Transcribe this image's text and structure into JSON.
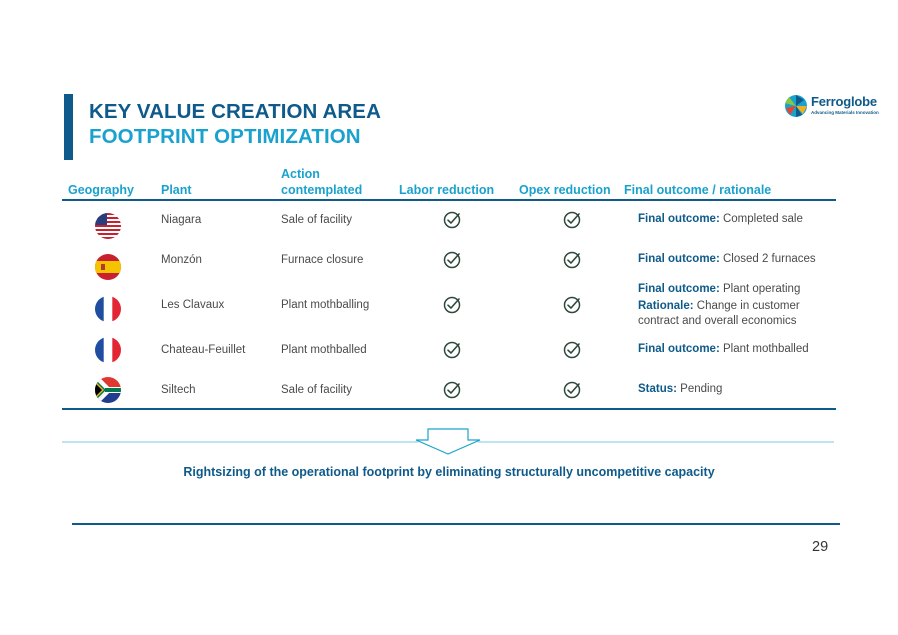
{
  "title": {
    "line1": "KEY VALUE CREATION AREA",
    "line2": "FOOTPRINT OPTIMIZATION"
  },
  "logo": {
    "name": "Ferroglobe",
    "tagline": "Advancing Materials Innovation"
  },
  "table": {
    "headers": {
      "geography": "Geography",
      "plant": "Plant",
      "action_line1": "Action",
      "action_line2": "contemplated",
      "labor": "Labor reduction",
      "opex": "Opex reduction",
      "outcome": "Final outcome / rationale"
    },
    "rows": [
      {
        "country": "United States",
        "plant": "Niagara",
        "action": "Sale of facility",
        "labor": true,
        "opex": true,
        "outcome": [
          {
            "label": "Final outcome:",
            "text": " Completed sale"
          }
        ]
      },
      {
        "country": "Spain",
        "plant": "Monzón",
        "action": "Furnace closure",
        "labor": true,
        "opex": true,
        "outcome": [
          {
            "label": "Final outcome:",
            "text": " Closed 2 furnaces"
          }
        ]
      },
      {
        "country": "France",
        "plant": "Les Clavaux",
        "action": "Plant mothballing",
        "labor": true,
        "opex": true,
        "outcome": [
          {
            "label": "Final outcome:",
            "text": " Plant operating"
          },
          {
            "label": "Rationale:",
            "text": " Change in customer"
          },
          {
            "label": "",
            "text": "contract and overall economics"
          }
        ]
      },
      {
        "country": "France",
        "plant": "Chateau-Feuillet",
        "action": "Plant mothballed",
        "labor": true,
        "opex": true,
        "outcome": [
          {
            "label": "Final outcome:",
            "text": " Plant mothballed"
          }
        ]
      },
      {
        "country": "South Africa",
        "plant": "Siltech",
        "action": "Sale of facility",
        "labor": true,
        "opex": true,
        "outcome": [
          {
            "label": "Status:",
            "text": " Pending"
          }
        ]
      }
    ]
  },
  "conclusion": "Rightsizing of the operational footprint by eliminating structurally uncompetitive capacity",
  "page_number": "29",
  "colors": {
    "dark_blue": "#0e5a8a",
    "light_blue": "#1aa2cf",
    "check": "#2e4a3c"
  }
}
